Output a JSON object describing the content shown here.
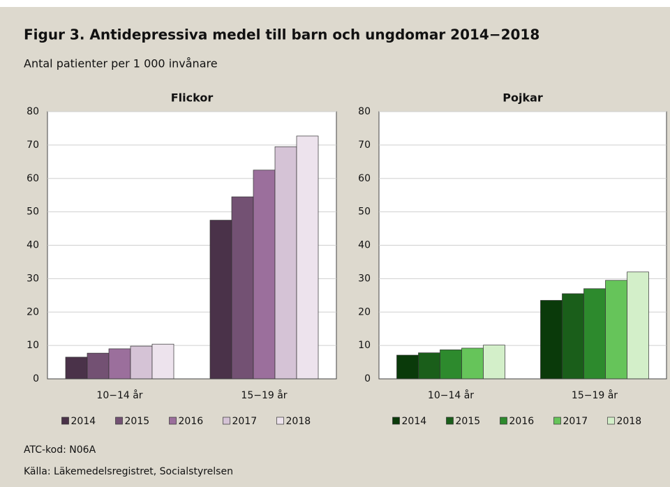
{
  "title": "Figur 3. Antidepressiva medel till barn och ungdomar 2014−2018",
  "subtitle": "Antal patienter per 1 000 invånare",
  "notes": [
    "ATC-kod: N06A",
    "Källa: Läkemedelsregistret, Socialstyrelsen"
  ],
  "chart_data": [
    {
      "type": "bar",
      "title": "Flickor",
      "categories": [
        "10−14 år",
        "15−19 år"
      ],
      "series": [
        {
          "name": "2014",
          "color": "#4a3249",
          "values": [
            6.5,
            47.5
          ]
        },
        {
          "name": "2015",
          "color": "#735173",
          "values": [
            7.7,
            54.5
          ]
        },
        {
          "name": "2016",
          "color": "#9b6f9c",
          "values": [
            9.0,
            62.5
          ]
        },
        {
          "name": "2017",
          "color": "#d5c3d6",
          "values": [
            9.8,
            69.5
          ]
        },
        {
          "name": "2018",
          "color": "#ede3ed",
          "values": [
            10.4,
            72.7
          ]
        }
      ],
      "ylim": [
        0,
        80
      ],
      "yticks": [
        0,
        10,
        20,
        30,
        40,
        50,
        60,
        70,
        80
      ],
      "grid": true
    },
    {
      "type": "bar",
      "title": "Pojkar",
      "categories": [
        "10−14 år",
        "15−19 år"
      ],
      "series": [
        {
          "name": "2014",
          "color": "#0a3a0a",
          "values": [
            7.1,
            23.5
          ]
        },
        {
          "name": "2015",
          "color": "#1a5e1a",
          "values": [
            7.8,
            25.5
          ]
        },
        {
          "name": "2016",
          "color": "#2d8a2d",
          "values": [
            8.7,
            27.0
          ]
        },
        {
          "name": "2017",
          "color": "#66c45a",
          "values": [
            9.2,
            29.5
          ]
        },
        {
          "name": "2018",
          "color": "#d3efc9",
          "values": [
            10.1,
            32.0
          ]
        }
      ],
      "ylim": [
        0,
        80
      ],
      "yticks": [
        0,
        10,
        20,
        30,
        40,
        50,
        60,
        70,
        80
      ],
      "grid": true
    }
  ]
}
